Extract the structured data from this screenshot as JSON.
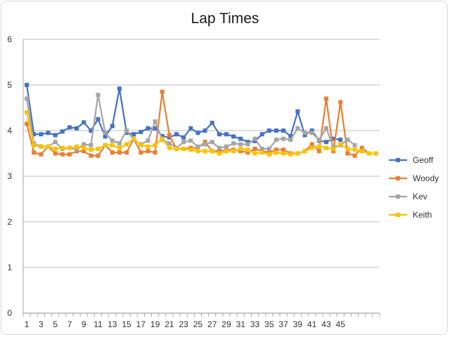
{
  "chart_data": {
    "type": "line",
    "title": "Lap Times",
    "xlabel": "",
    "ylabel": "",
    "ylim": [
      0,
      6
    ],
    "yticks": [
      0,
      1,
      2,
      3,
      4,
      5,
      6
    ],
    "x": [
      1,
      2,
      3,
      4,
      5,
      6,
      7,
      8,
      9,
      10,
      11,
      12,
      13,
      14,
      15,
      16,
      17,
      18,
      19,
      20,
      21,
      22,
      23,
      24,
      25,
      26,
      27,
      28,
      29,
      30,
      31,
      32,
      33,
      34,
      35,
      36,
      37,
      38,
      39,
      40,
      41,
      42,
      43,
      44,
      45,
      46,
      47,
      48,
      49,
      50
    ],
    "xtick_labels": [
      "1",
      "3",
      "5",
      "7",
      "9",
      "11",
      "13",
      "15",
      "17",
      "19",
      "21",
      "23",
      "25",
      "27",
      "29",
      "31",
      "33",
      "35",
      "37",
      "39",
      "41",
      "43",
      "45"
    ],
    "grid": "horizontal",
    "legend": "right",
    "series": [
      {
        "name": "Geoff",
        "color": "#4472c4",
        "marker": "square",
        "values": [
          5.0,
          3.92,
          3.92,
          3.95,
          3.9,
          3.98,
          4.07,
          4.05,
          4.18,
          4.0,
          4.25,
          3.87,
          4.1,
          4.92,
          3.95,
          3.92,
          3.97,
          4.05,
          4.05,
          3.88,
          3.85,
          3.92,
          3.85,
          4.05,
          3.95,
          4.0,
          4.17,
          3.92,
          3.92,
          3.87,
          3.82,
          3.75,
          3.77,
          3.92,
          4.0,
          4.0,
          4.0,
          3.88,
          4.42,
          3.9,
          4.0,
          3.78,
          3.75,
          3.82,
          3.8,
          null,
          null,
          null,
          null,
          null
        ]
      },
      {
        "name": "Woody",
        "color": "#ed7d31",
        "marker": "square",
        "values": [
          4.15,
          3.52,
          3.48,
          3.65,
          3.5,
          3.48,
          3.48,
          3.55,
          3.55,
          3.45,
          3.45,
          3.68,
          3.52,
          3.52,
          3.52,
          3.82,
          3.52,
          3.55,
          3.52,
          4.85,
          3.9,
          3.6,
          3.6,
          3.62,
          3.62,
          3.75,
          3.55,
          3.55,
          3.58,
          3.58,
          3.55,
          3.52,
          3.6,
          3.55,
          3.52,
          3.58,
          3.58,
          3.5,
          3.5,
          3.55,
          3.7,
          3.55,
          4.7,
          3.55,
          4.62,
          3.5,
          3.45,
          3.62,
          3.5,
          null
        ]
      },
      {
        "name": "Kev",
        "color": "#a5a5a5",
        "marker": "square",
        "values": [
          4.7,
          3.72,
          3.65,
          3.65,
          3.75,
          3.6,
          3.62,
          3.58,
          3.7,
          3.68,
          4.78,
          3.95,
          3.78,
          3.72,
          4.0,
          3.8,
          3.7,
          3.78,
          4.2,
          3.8,
          3.72,
          3.62,
          3.75,
          3.78,
          3.65,
          3.7,
          3.75,
          3.62,
          3.65,
          3.72,
          3.7,
          3.7,
          3.82,
          3.6,
          3.6,
          3.8,
          3.82,
          3.8,
          4.05,
          3.95,
          3.95,
          3.8,
          4.05,
          3.65,
          3.68,
          3.8,
          3.68,
          null,
          null,
          null
        ]
      },
      {
        "name": "Keith",
        "color": "#ffc000",
        "marker": "square",
        "values": [
          4.4,
          3.68,
          3.65,
          3.65,
          3.6,
          3.62,
          3.62,
          3.65,
          3.62,
          3.58,
          3.6,
          3.68,
          3.68,
          3.62,
          3.7,
          3.82,
          3.68,
          3.65,
          3.68,
          3.82,
          3.62,
          3.6,
          3.6,
          3.58,
          3.55,
          3.55,
          3.55,
          3.5,
          3.55,
          3.55,
          3.6,
          3.58,
          3.5,
          3.52,
          3.48,
          3.52,
          3.5,
          3.48,
          3.5,
          3.55,
          3.62,
          3.65,
          3.62,
          3.6,
          3.7,
          3.6,
          3.58,
          3.55,
          3.5,
          3.5
        ]
      }
    ]
  }
}
